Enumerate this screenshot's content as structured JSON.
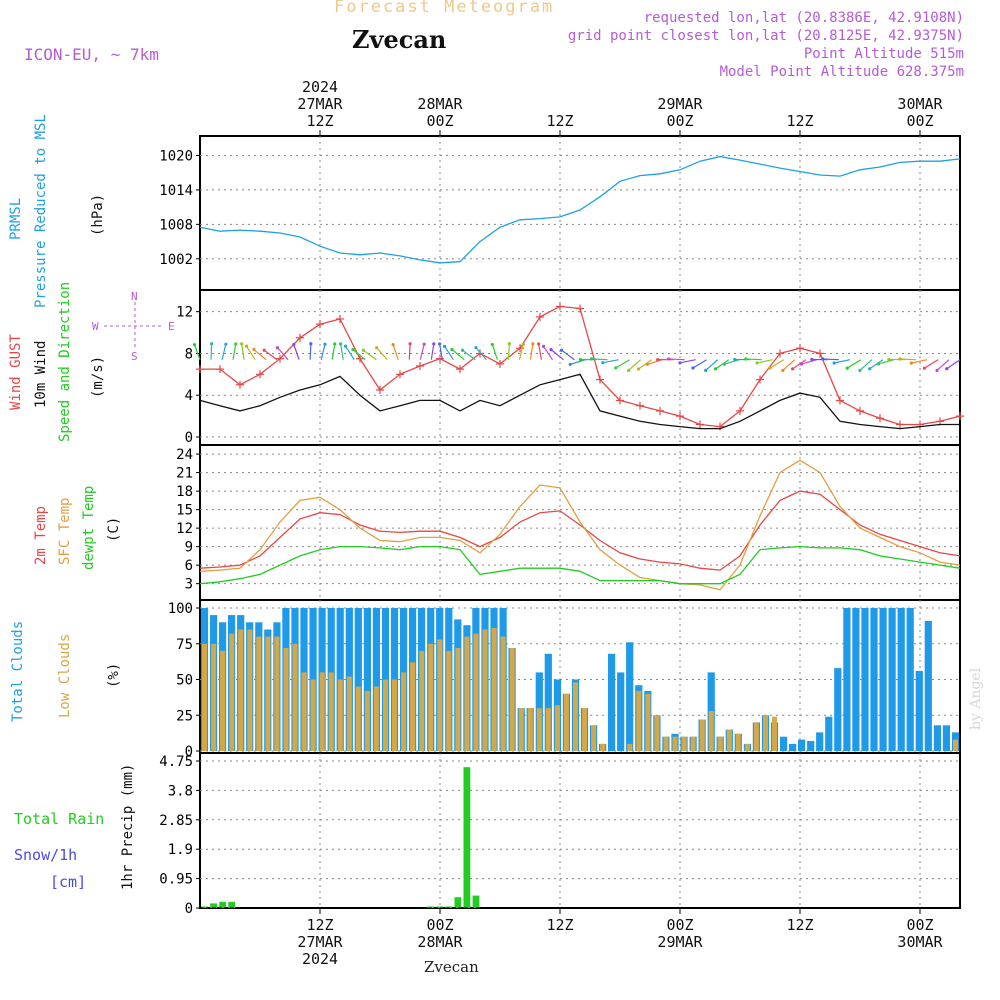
{
  "header": {
    "title": "Forecast Meteogram",
    "station": "Zvecan",
    "model": "ICON-EU, ~ 7km",
    "requested": "requested lon,lat (20.8386E, 42.9108N)",
    "gridpoint": "grid point closest lon,lat (20.8125E, 42.9375N)",
    "point_alt": "Point Altitude 515m",
    "model_alt": "Model Point Altitude 628.375m"
  },
  "footer": {
    "station": "Zvecan",
    "credit": "by Angel"
  },
  "time_axis": {
    "top_ticks": [
      {
        "h": 12,
        "l1": "2024",
        "l2": "27MAR",
        "l3": "12Z"
      },
      {
        "h": 24,
        "l1": "",
        "l2": "28MAR",
        "l3": "00Z"
      },
      {
        "h": 36,
        "l1": "",
        "l2": "",
        "l3": "12Z"
      },
      {
        "h": 48,
        "l1": "",
        "l2": "29MAR",
        "l3": "00Z"
      },
      {
        "h": 60,
        "l1": "",
        "l2": "",
        "l3": "12Z"
      },
      {
        "h": 72,
        "l1": "",
        "l2": "30MAR",
        "l3": "00Z"
      }
    ],
    "bottom_ticks": [
      {
        "h": 12,
        "l1": "12Z",
        "l2": "27MAR",
        "l3": "2024"
      },
      {
        "h": 24,
        "l1": "00Z",
        "l2": "28MAR",
        "l3": ""
      },
      {
        "h": 36,
        "l1": "12Z",
        "l2": "",
        "l3": ""
      },
      {
        "h": 48,
        "l1": "00Z",
        "l2": "29MAR",
        "l3": ""
      },
      {
        "h": 60,
        "l1": "12Z",
        "l2": "",
        "l3": ""
      },
      {
        "h": 72,
        "l1": "00Z",
        "l2": "30MAR",
        "l3": ""
      }
    ]
  },
  "labels": {
    "pressure": [
      "PRMSL",
      "Pressure Reduced to MSL",
      "(hPa)"
    ],
    "wind": [
      "Wind GUST",
      "10m Wind",
      "Speed and Direction",
      "(m/s)"
    ],
    "compass": {
      "n": "N",
      "s": "S",
      "w": "W",
      "e": "E"
    },
    "temp": [
      "2m Temp",
      "SFC Temp",
      "dewpt Temp",
      "(C)"
    ],
    "clouds": [
      "Total Clouds",
      "Low Clouds",
      "(%)"
    ],
    "precip": [
      "Total  Rain",
      "Snow/1h",
      "[cm]",
      "1hr Precip (mm)"
    ]
  },
  "colors": {
    "pressure": "#1ea0e6",
    "gust": "#e84646",
    "wind": "#111111",
    "temp2m": "#e84646",
    "sfc": "#e0a040",
    "dew": "#22cc22",
    "total_clouds": "#1e9ae8",
    "low_clouds": "#d4a84a",
    "rain": "#22cc22"
  },
  "chart_data": [
    {
      "type": "line",
      "name": "pressure",
      "ylim": [
        999,
        1022
      ],
      "yticks": [
        1002,
        1008,
        1014,
        1020
      ],
      "x": [
        0,
        2,
        4,
        6,
        8,
        10,
        12,
        14,
        16,
        18,
        20,
        22,
        24,
        26,
        28,
        30,
        32,
        34,
        36,
        38,
        40,
        42,
        44,
        46,
        48,
        50,
        52,
        54,
        56,
        58,
        60,
        62,
        64,
        66,
        68,
        70,
        72,
        74,
        76
      ],
      "series": [
        {
          "values": [
            1007.5,
            1006.8,
            1007.0,
            1006.8,
            1006.5,
            1005.8,
            1004.2,
            1003.0,
            1002.7,
            1003.0,
            1002.5,
            1001.8,
            1001.3,
            1001.5,
            1005.0,
            1007.5,
            1008.8,
            1009.0,
            1009.3,
            1010.5,
            1012.8,
            1015.5,
            1016.5,
            1016.8,
            1017.5,
            1019.0,
            1019.8,
            1019.2,
            1018.5,
            1017.8,
            1017.2,
            1016.6,
            1016.4,
            1017.5,
            1018.0,
            1018.8,
            1019.0,
            1019.0,
            1019.4
          ]
        }
      ]
    },
    {
      "type": "line",
      "name": "wind",
      "ylim": [
        0,
        13.5
      ],
      "yticks": [
        0,
        4,
        8,
        12
      ],
      "x": [
        0,
        2,
        4,
        6,
        8,
        10,
        12,
        14,
        16,
        18,
        20,
        22,
        24,
        26,
        28,
        30,
        32,
        34,
        36,
        38,
        40,
        42,
        44,
        46,
        48,
        50,
        52,
        54,
        56,
        58,
        60,
        62,
        64,
        66,
        68,
        70,
        72,
        74,
        76
      ],
      "series": [
        {
          "values": [
            6.5,
            6.5,
            5.0,
            6.0,
            7.5,
            9.5,
            10.8,
            11.3,
            7.5,
            4.5,
            6.0,
            6.8,
            7.5,
            6.5,
            8.0,
            7.0,
            8.5,
            11.5,
            12.5,
            12.3,
            5.5,
            3.5,
            3.0,
            2.5,
            2.0,
            1.2,
            1.0,
            2.5,
            5.5,
            8.0,
            8.5,
            8.0,
            3.5,
            2.5,
            1.8,
            1.2,
            1.2,
            1.5,
            2.0
          ]
        },
        {
          "values": [
            3.5,
            3.0,
            2.5,
            3.0,
            3.8,
            4.5,
            5.0,
            5.8,
            4.0,
            2.5,
            3.0,
            3.5,
            3.5,
            2.5,
            3.5,
            3.0,
            4.0,
            5.0,
            5.5,
            6.0,
            2.5,
            2.0,
            1.5,
            1.2,
            1.0,
            0.8,
            0.8,
            1.5,
            2.5,
            3.5,
            4.2,
            3.8,
            1.5,
            1.2,
            1.0,
            0.8,
            1.0,
            1.2,
            1.2
          ]
        }
      ]
    },
    {
      "type": "line",
      "name": "temperature",
      "ylim": [
        1,
        24.5
      ],
      "yticks": [
        3,
        6,
        9,
        12,
        15,
        18,
        21,
        24
      ],
      "x": [
        0,
        2,
        4,
        6,
        8,
        10,
        12,
        14,
        16,
        18,
        20,
        22,
        24,
        26,
        28,
        30,
        32,
        34,
        36,
        38,
        40,
        42,
        44,
        46,
        48,
        50,
        52,
        54,
        56,
        58,
        60,
        62,
        64,
        66,
        68,
        70,
        72,
        74,
        76
      ],
      "series": [
        {
          "values": [
            5.5,
            5.7,
            6.0,
            7.5,
            10.5,
            13.5,
            14.5,
            14.2,
            12.5,
            11.5,
            11.3,
            11.5,
            11.5,
            10.5,
            9.0,
            10.5,
            13.0,
            14.5,
            14.8,
            12.5,
            10.0,
            8.0,
            7.0,
            6.5,
            6.2,
            5.5,
            5.2,
            7.5,
            12.5,
            16.5,
            18.0,
            17.5,
            15.0,
            12.5,
            11.0,
            10.0,
            9.0,
            8.0,
            7.5
          ]
        },
        {
          "values": [
            5.0,
            5.2,
            5.5,
            8.5,
            13.0,
            16.5,
            17.0,
            15.0,
            12.0,
            10.0,
            9.8,
            10.5,
            10.5,
            10.0,
            8.0,
            11.0,
            15.5,
            19.0,
            18.5,
            13.0,
            8.5,
            6.0,
            4.0,
            3.5,
            3.0,
            2.8,
            2.0,
            6.0,
            14.0,
            21.0,
            23.0,
            21.0,
            15.5,
            12.0,
            10.5,
            9.0,
            8.0,
            6.5,
            6.0
          ]
        },
        {
          "values": [
            3.0,
            3.3,
            3.8,
            4.5,
            6.0,
            7.5,
            8.5,
            9.0,
            9.0,
            8.8,
            8.5,
            9.0,
            9.0,
            8.5,
            4.5,
            5.0,
            5.5,
            5.5,
            5.5,
            5.0,
            3.5,
            3.5,
            3.5,
            3.5,
            3.0,
            3.0,
            3.0,
            4.5,
            8.5,
            8.8,
            9.0,
            8.8,
            8.8,
            8.5,
            7.5,
            7.0,
            6.5,
            6.0,
            5.5
          ]
        }
      ]
    },
    {
      "type": "bar",
      "name": "clouds",
      "ylim": [
        0,
        100
      ],
      "yticks": [
        0,
        25,
        50,
        75,
        100
      ],
      "series": [
        {
          "name": "Total Clouds",
          "values": [
            100,
            95,
            90,
            95,
            95,
            90,
            90,
            85,
            90,
            100,
            100,
            100,
            100,
            100,
            100,
            100,
            100,
            100,
            100,
            100,
            100,
            100,
            100,
            100,
            100,
            100,
            100,
            100,
            92,
            88,
            100,
            100,
            100,
            100,
            72,
            30,
            30,
            55,
            68,
            50,
            40,
            50,
            30,
            18,
            5,
            68,
            55,
            76,
            46,
            42,
            25,
            10,
            12,
            10,
            10,
            22,
            55,
            10,
            15,
            12,
            5,
            20,
            25,
            20,
            10,
            5,
            8,
            7,
            13,
            24,
            58,
            100,
            100,
            100,
            100,
            100,
            100,
            100,
            100,
            56,
            91,
            18,
            18,
            13
          ]
        },
        {
          "name": "Low Clouds",
          "values": [
            75,
            75,
            70,
            82,
            85,
            85,
            80,
            80,
            80,
            72,
            75,
            55,
            50,
            55,
            55,
            50,
            52,
            45,
            42,
            45,
            50,
            50,
            55,
            62,
            70,
            75,
            78,
            70,
            72,
            80,
            82,
            85,
            86,
            80,
            72,
            30,
            30,
            30,
            30,
            32,
            40,
            48,
            30,
            18,
            5,
            0,
            0,
            5,
            42,
            40,
            25,
            10,
            10,
            10,
            10,
            22,
            28,
            10,
            15,
            12,
            5,
            20,
            25,
            24,
            0,
            0,
            0,
            0,
            0,
            0,
            0,
            0,
            0,
            0,
            0,
            0,
            0,
            0,
            0,
            0,
            0,
            0,
            0,
            8
          ]
        }
      ]
    },
    {
      "type": "bar",
      "name": "precip",
      "ylim": [
        0,
        4.75
      ],
      "yticks": [
        0,
        0.95,
        1.9,
        2.85,
        3.8,
        4.75
      ],
      "series": [
        {
          "name": "Total Rain",
          "values": [
            0.05,
            0.15,
            0.2,
            0.2,
            0,
            0,
            0,
            0,
            0,
            0,
            0,
            0,
            0,
            0,
            0,
            0,
            0,
            0,
            0,
            0,
            0,
            0,
            0,
            0,
            0,
            0.05,
            0.05,
            0.05,
            0.35,
            4.55,
            0.4,
            0,
            0,
            0,
            0,
            0,
            0,
            0,
            0,
            0,
            0,
            0,
            0,
            0,
            0,
            0,
            0,
            0,
            0,
            0,
            0,
            0,
            0,
            0,
            0,
            0,
            0,
            0,
            0,
            0,
            0,
            0,
            0,
            0,
            0,
            0,
            0,
            0,
            0,
            0,
            0,
            0,
            0,
            0,
            0,
            0,
            0,
            0,
            0,
            0,
            0,
            0,
            0,
            0
          ]
        }
      ]
    }
  ]
}
